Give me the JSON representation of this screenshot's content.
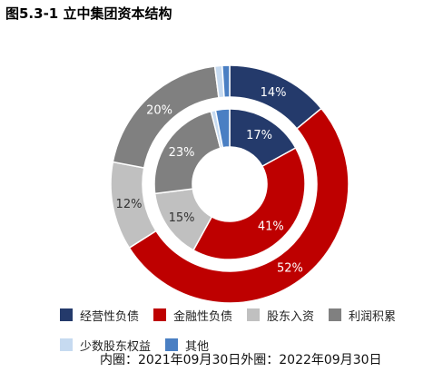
{
  "title": "图5.3-1 立中集团资本结构",
  "note": "内圈：2021年09月30日外圈：2022年09月30日",
  "chart_data": {
    "type": "pie",
    "subtype": "nested-donut",
    "categories": [
      "经营性负债",
      "金融性负债",
      "股东入资",
      "利润积累",
      "少数股东权益",
      "其他"
    ],
    "colors": [
      "#243a6b",
      "#be0000",
      "#c0c0c0",
      "#808080",
      "#c6daf0",
      "#4a7fc3"
    ],
    "series": [
      {
        "ring": "inner",
        "values": [
          17,
          41,
          15,
          23,
          1,
          3
        ],
        "labels": [
          "17%",
          "41%",
          "15%",
          "23%",
          "",
          ""
        ]
      },
      {
        "ring": "outer",
        "values": [
          14,
          52,
          12,
          20,
          1,
          1
        ],
        "labels": [
          "14%",
          "52%",
          "12%",
          "20%",
          "",
          ""
        ]
      }
    ],
    "legend": {
      "position": "bottom",
      "entries": [
        "经营性负债",
        "金融性负债",
        "股东入资",
        "利润积累",
        "少数股东权益",
        "其他"
      ]
    }
  }
}
